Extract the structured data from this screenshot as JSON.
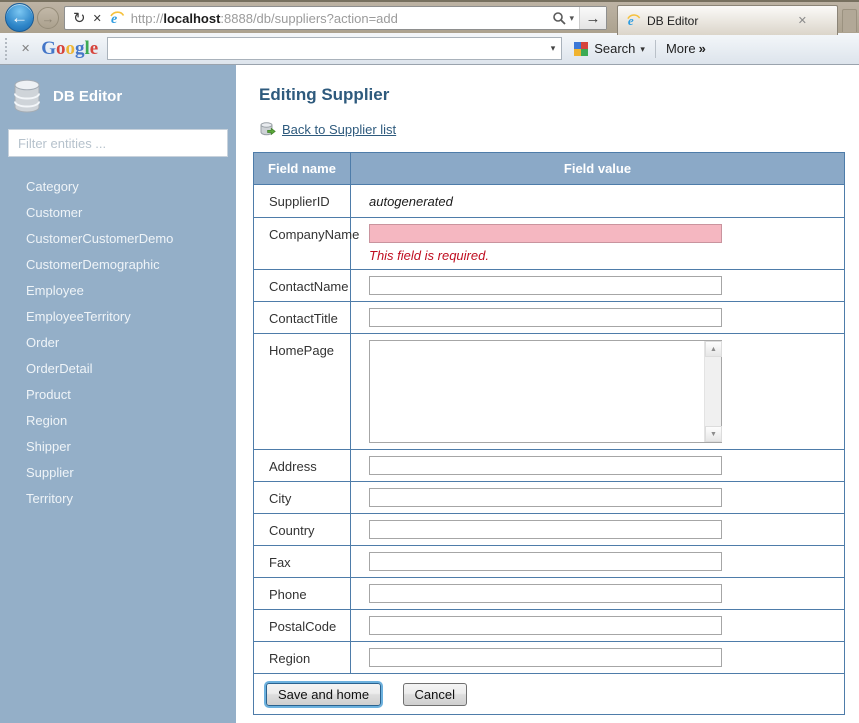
{
  "browser": {
    "url_prefix": "http://",
    "url_host": "localhost",
    "url_rest": ":8888/db/suppliers?action=add",
    "tab_title": "DB Editor"
  },
  "google_bar": {
    "logo_letters": [
      {
        "ch": "G",
        "color": "#4476c8"
      },
      {
        "ch": "o",
        "color": "#d6443c"
      },
      {
        "ch": "o",
        "color": "#efb736"
      },
      {
        "ch": "g",
        "color": "#4476c8"
      },
      {
        "ch": "l",
        "color": "#3caa54"
      },
      {
        "ch": "e",
        "color": "#d6443c"
      }
    ],
    "search_label": "Search",
    "more_label": "More",
    "more_chevron": "»"
  },
  "sidebar": {
    "title": "DB Editor",
    "filter_placeholder": "Filter entities ...",
    "items": [
      "Category",
      "Customer",
      "CustomerCustomerDemo",
      "CustomerDemographic",
      "Employee",
      "EmployeeTerritory",
      "Order",
      "OrderDetail",
      "Product",
      "Region",
      "Shipper",
      "Supplier",
      "Territory"
    ]
  },
  "main": {
    "heading": "Editing Supplier",
    "back_link_label": "Back to Supplier list",
    "table": {
      "header_name": "Field name",
      "header_value": "Field value",
      "rows": [
        {
          "label": "SupplierID",
          "value": "autogenerated"
        },
        {
          "label": "CompanyName",
          "error": "This field is required."
        },
        {
          "label": "ContactName"
        },
        {
          "label": "ContactTitle"
        },
        {
          "label": "HomePage"
        },
        {
          "label": "Address"
        },
        {
          "label": "City"
        },
        {
          "label": "Country"
        },
        {
          "label": "Fax"
        },
        {
          "label": "Phone"
        },
        {
          "label": "PostalCode"
        },
        {
          "label": "Region"
        }
      ],
      "save_label": "Save and home",
      "cancel_label": "Cancel"
    }
  },
  "colors": {
    "sidebar_bg": "#94afc8",
    "table_border": "#4e7ca9",
    "table_header_bg": "#8ba9c7",
    "error_text": "#bf0d20",
    "error_input_bg": "#f5b7c1",
    "heading_text": "#2e5a7d"
  }
}
